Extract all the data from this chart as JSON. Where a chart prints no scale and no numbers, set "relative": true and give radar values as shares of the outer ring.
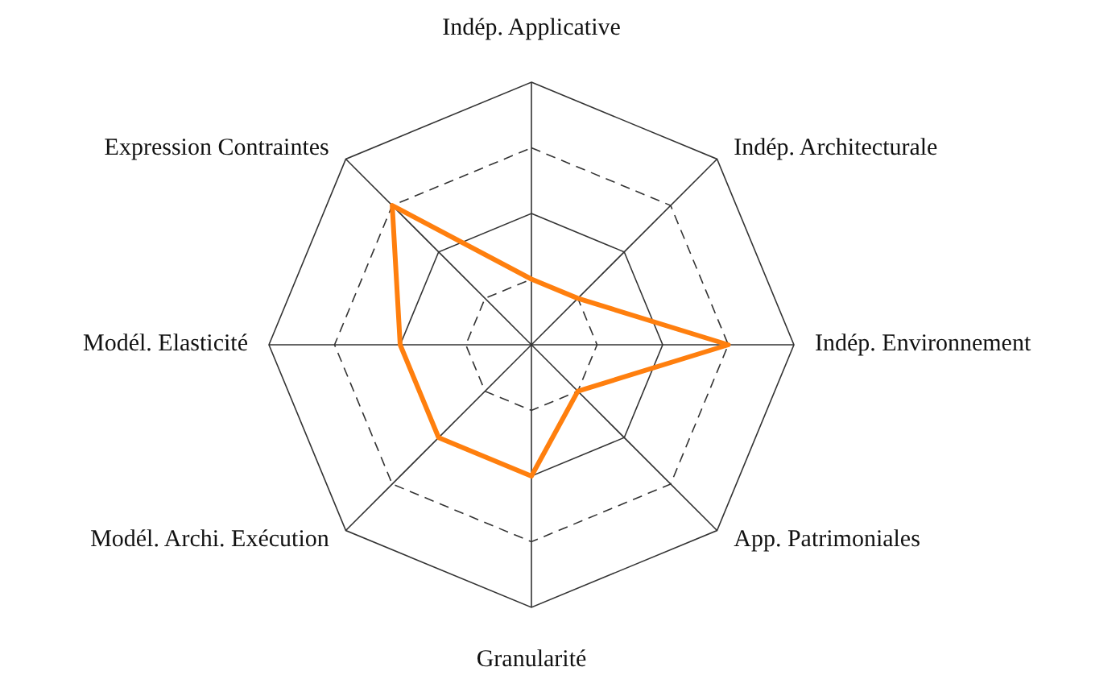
{
  "chart_data": {
    "type": "radar",
    "relative": true,
    "grid": true,
    "line_style": "solid",
    "marker": "none",
    "categories": [
      "Indép. Applicative",
      "Indép. Architecturale",
      "Indép. Environnement",
      "App. Patrimoniales",
      "Granularité",
      "Modél. Archi. Exécution",
      "Modél. Elasticité",
      "Expression Contraintes"
    ],
    "series": [
      {
        "color": "#ff7f0e",
        "values": [
          0.25,
          0.25,
          0.75,
          0.25,
          0.5,
          0.5,
          0.5,
          0.75
        ]
      }
    ]
  }
}
